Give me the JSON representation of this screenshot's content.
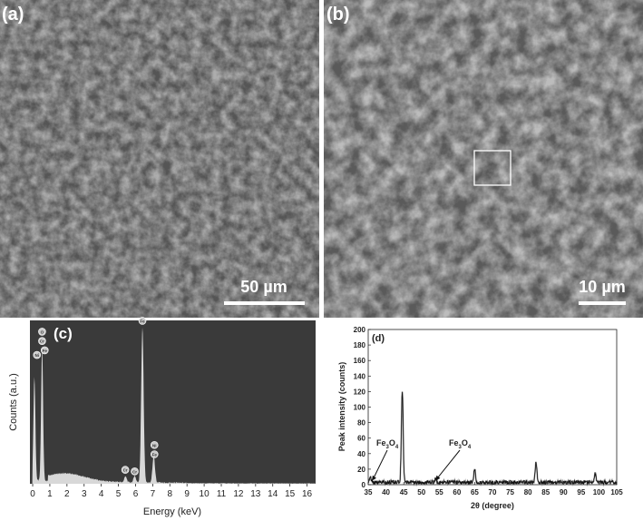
{
  "panels": {
    "a": {
      "label": "(a)",
      "scale_bar": "50 µm"
    },
    "b": {
      "label": "(b)",
      "scale_bar": "10 µm"
    }
  },
  "chart_data": [
    {
      "panel": "(c)",
      "type": "line",
      "xlabel": "Energy (keV)",
      "ylabel": "Counts (a.u.)",
      "xlim": [
        -0.16,
        16.5
      ],
      "xticks": [
        0,
        1,
        2,
        3,
        4,
        5,
        6,
        7,
        8,
        9,
        10,
        11,
        12,
        13,
        14,
        15,
        16
      ],
      "grid": false,
      "colors": {
        "background": "#3a3a3a",
        "fill": "#d8d8d8"
      },
      "peaks": [
        {
          "energy": 0.1,
          "height": 0.66,
          "label": ""
        },
        {
          "energy": 0.55,
          "height": 0.86,
          "label": "O, Cr, Fe, Ni"
        },
        {
          "energy": 5.41,
          "height": 0.04,
          "label": "Cr"
        },
        {
          "energy": 5.95,
          "height": 0.04,
          "label": "Cr"
        },
        {
          "energy": 6.4,
          "height": 1.0,
          "label": "Fe"
        },
        {
          "energy": 7.06,
          "height": 0.17,
          "label": "Fe, Ni"
        }
      ],
      "element_labels": [
        {
          "text": "O",
          "energy": 0.55,
          "level": 0.98
        },
        {
          "text": "Cr",
          "energy": 0.55,
          "level": 0.92
        },
        {
          "text": "Fe",
          "energy": 0.7,
          "level": 0.86
        },
        {
          "text": "Ni",
          "energy": 0.25,
          "level": 0.83
        },
        {
          "text": "Fe",
          "energy": 6.4,
          "level": 1.05
        },
        {
          "text": "Ni",
          "energy": 7.1,
          "level": 0.25
        },
        {
          "text": "Fe",
          "energy": 7.1,
          "level": 0.19
        },
        {
          "text": "Cr",
          "energy": 5.4,
          "level": 0.09
        },
        {
          "text": "Cr",
          "energy": 5.95,
          "level": 0.08
        }
      ]
    },
    {
      "panel": "(d)",
      "type": "line",
      "xlabel": "2θ (degree)",
      "ylabel": "Peak intensity (counts)",
      "xlim": [
        35,
        105
      ],
      "ylim": [
        0,
        200
      ],
      "xticks": [
        35,
        40,
        45,
        50,
        55,
        60,
        65,
        70,
        75,
        80,
        85,
        90,
        95,
        100,
        105
      ],
      "yticks": [
        0,
        20,
        40,
        60,
        80,
        100,
        120,
        140,
        160,
        180,
        200
      ],
      "grid": false,
      "baseline": 3,
      "peaks": [
        {
          "two_theta": 35.6,
          "intensity": 8
        },
        {
          "two_theta": 44.6,
          "intensity": 118
        },
        {
          "two_theta": 54.0,
          "intensity": 5
        },
        {
          "two_theta": 65.0,
          "intensity": 17
        },
        {
          "two_theta": 82.3,
          "intensity": 26
        },
        {
          "two_theta": 98.9,
          "intensity": 11
        }
      ],
      "annotations": [
        {
          "text": "Fe3O4",
          "points_to": [
            36,
            5
          ]
        },
        {
          "text": "Fe3O4",
          "points_to": [
            54,
            5
          ]
        }
      ]
    }
  ]
}
